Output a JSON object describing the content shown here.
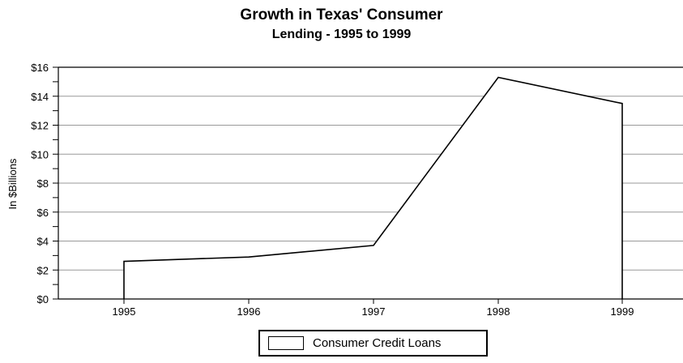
{
  "chart_data": {
    "type": "area",
    "title": "Growth in Texas' Consumer",
    "subtitle": "Lending - 1995 to 1999",
    "ylabel": "In $Billions",
    "xlabel": "",
    "categories": [
      "1995",
      "1996",
      "1997",
      "1998",
      "1999"
    ],
    "series": [
      {
        "name": "Consumer Credit Loans",
        "values": [
          2.6,
          2.9,
          3.7,
          15.3,
          13.5
        ]
      }
    ],
    "ylim": [
      0,
      16
    ],
    "yticks": [
      "$0",
      "$2",
      "$4",
      "$6",
      "$8",
      "$10",
      "$12",
      "$14",
      "$16"
    ],
    "grid": true,
    "legend_position": "bottom"
  }
}
